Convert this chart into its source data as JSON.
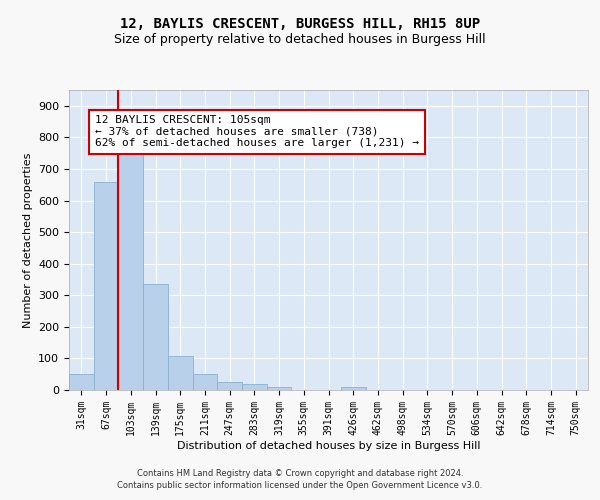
{
  "title1": "12, BAYLIS CRESCENT, BURGESS HILL, RH15 8UP",
  "title2": "Size of property relative to detached houses in Burgess Hill",
  "xlabel": "Distribution of detached houses by size in Burgess Hill",
  "ylabel": "Number of detached properties",
  "footer1": "Contains HM Land Registry data © Crown copyright and database right 2024.",
  "footer2": "Contains public sector information licensed under the Open Government Licence v3.0.",
  "bar_labels": [
    "31sqm",
    "67sqm",
    "103sqm",
    "139sqm",
    "175sqm",
    "211sqm",
    "247sqm",
    "283sqm",
    "319sqm",
    "355sqm",
    "391sqm",
    "426sqm",
    "462sqm",
    "498sqm",
    "534sqm",
    "570sqm",
    "606sqm",
    "642sqm",
    "678sqm",
    "714sqm",
    "750sqm"
  ],
  "bar_values": [
    52,
    660,
    748,
    335,
    107,
    52,
    25,
    18,
    10,
    0,
    0,
    10,
    0,
    0,
    0,
    0,
    0,
    0,
    0,
    0,
    0
  ],
  "bar_color": "#b8d0ea",
  "bar_edge_color": "#8ab0d0",
  "vline_color": "#cc0000",
  "annotation_text": "12 BAYLIS CRESCENT: 105sqm\n← 37% of detached houses are smaller (738)\n62% of semi-detached houses are larger (1,231) →",
  "annotation_box_color": "#ffffff",
  "annotation_box_edge_color": "#cc0000",
  "ylim": [
    0,
    950
  ],
  "yticks": [
    0,
    100,
    200,
    300,
    400,
    500,
    600,
    700,
    800,
    900
  ],
  "fig_bg_color": "#f8f8f8",
  "plot_bg_color": "#dce8f5",
  "title1_fontsize": 10,
  "title2_fontsize": 9,
  "grid_color": "#ffffff",
  "annotation_fontsize": 8,
  "xlabel_fontsize": 8,
  "ylabel_fontsize": 8,
  "tick_fontsize": 7,
  "footer_fontsize": 6
}
